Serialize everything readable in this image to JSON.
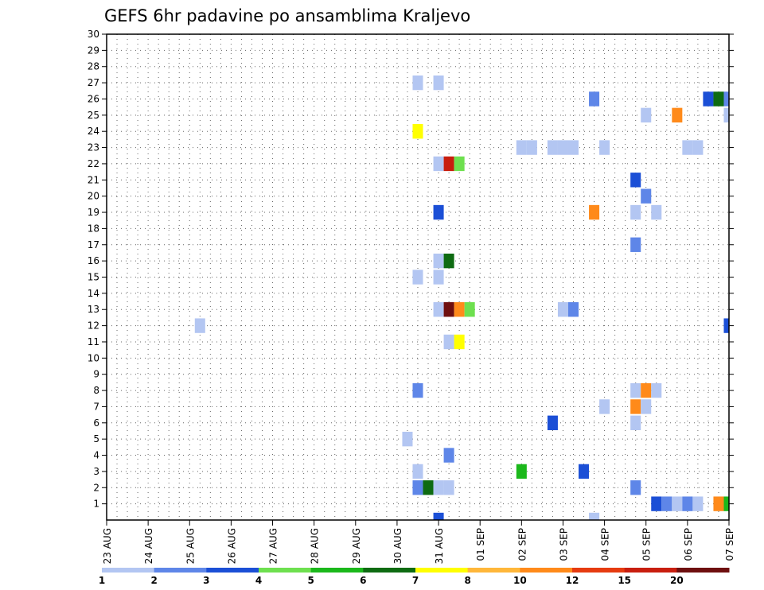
{
  "chart_data": {
    "type": "heatmap",
    "title": "GEFS 6hr padavine po ansamblima Kraljevo",
    "x_tick_labels": [
      "23 AUG",
      "24 AUG",
      "25 AUG",
      "26 AUG",
      "27 AUG",
      "28 AUG",
      "29 AUG",
      "30 AUG",
      "31 AUG",
      "01 SEP",
      "02 SEP",
      "03 SEP",
      "04 SEP",
      "05 SEP",
      "06 SEP",
      "07 SEP"
    ],
    "y_tick_labels": [
      "1",
      "2",
      "3",
      "4",
      "5",
      "6",
      "7",
      "8",
      "9",
      "10",
      "11",
      "12",
      "13",
      "14",
      "15",
      "16",
      "17",
      "18",
      "19",
      "20",
      "21",
      "22",
      "23",
      "24",
      "25",
      "26",
      "27",
      "28",
      "29",
      "30"
    ],
    "xlim": [
      "23 AUG 00z",
      "07 SEP 00z"
    ],
    "ylim": [
      0,
      30
    ],
    "grid": "dotted",
    "colorbar_labels": [
      "1",
      "2",
      "3",
      "4",
      "5",
      "6",
      "7",
      "8",
      "10",
      "12",
      "15",
      "20"
    ],
    "colorbar_colors": [
      "#b3c6f2",
      "#5e86e8",
      "#1b4fd6",
      "#6ee04f",
      "#1bb81b",
      "#0e6b12",
      "#ffff00",
      "#ffb73a",
      "#ff8a1a",
      "#e63b10",
      "#c81e0e",
      "#6e0f0f"
    ],
    "cells": [
      {
        "x": "30 AUG 12z",
        "member": 27,
        "value": 1
      },
      {
        "x": "31 AUG 00z",
        "member": 27,
        "value": 1
      },
      {
        "x": "30 AUG 12z",
        "member": 24,
        "value": 7
      },
      {
        "x": "31 AUG 00z",
        "member": 22,
        "value": 1
      },
      {
        "x": "31 AUG 06z",
        "member": 22,
        "value": 15
      },
      {
        "x": "31 AUG 12z",
        "member": 22,
        "value": 4
      },
      {
        "x": "31 AUG 00z",
        "member": 19,
        "value": 3
      },
      {
        "x": "31 AUG 00z",
        "member": 16,
        "value": 1
      },
      {
        "x": "31 AUG 06z",
        "member": 16,
        "value": 6
      },
      {
        "x": "30 AUG 12z",
        "member": 15,
        "value": 1
      },
      {
        "x": "31 AUG 00z",
        "member": 15,
        "value": 1
      },
      {
        "x": "31 AUG 00z",
        "member": 13,
        "value": 1
      },
      {
        "x": "31 AUG 06z",
        "member": 13,
        "value": 20
      },
      {
        "x": "31 AUG 12z",
        "member": 13,
        "value": 10
      },
      {
        "x": "31 AUG 18z",
        "member": 13,
        "value": 4
      },
      {
        "x": "25 AUG 06z",
        "member": 12,
        "value": 1
      },
      {
        "x": "31 AUG 06z",
        "member": 11,
        "value": 1
      },
      {
        "x": "31 AUG 12z",
        "member": 11,
        "value": 7
      },
      {
        "x": "30 AUG 12z",
        "member": 8,
        "value": 2
      },
      {
        "x": "30 AUG 06z",
        "member": 5,
        "value": 1
      },
      {
        "x": "31 AUG 06z",
        "member": 4,
        "value": 2
      },
      {
        "x": "30 AUG 12z",
        "member": 3,
        "value": 1
      },
      {
        "x": "30 AUG 12z",
        "member": 2,
        "value": 2
      },
      {
        "x": "30 AUG 18z",
        "member": 2,
        "value": 6
      },
      {
        "x": "31 AUG 00z",
        "member": 2,
        "value": 1
      },
      {
        "x": "31 AUG 06z",
        "member": 2,
        "value": 1
      },
      {
        "x": "31 AUG 00z",
        "member": 0,
        "value": 3
      },
      {
        "x": "02 SEP 00z",
        "member": 23,
        "value": 1
      },
      {
        "x": "02 SEP 06z",
        "member": 23,
        "value": 1
      },
      {
        "x": "02 SEP 18z",
        "member": 23,
        "value": 1
      },
      {
        "x": "03 SEP 00z",
        "member": 23,
        "value": 1
      },
      {
        "x": "03 SEP 06z",
        "member": 23,
        "value": 1
      },
      {
        "x": "04 SEP 00z",
        "member": 23,
        "value": 1
      },
      {
        "x": "06 SEP 00z",
        "member": 23,
        "value": 1
      },
      {
        "x": "06 SEP 06z",
        "member": 23,
        "value": 1
      },
      {
        "x": "04 SEP 18z",
        "member": 21,
        "value": 3
      },
      {
        "x": "05 SEP 00z",
        "member": 20,
        "value": 2
      },
      {
        "x": "03 SEP 18z",
        "member": 19,
        "value": 10
      },
      {
        "x": "04 SEP 18z",
        "member": 19,
        "value": 1
      },
      {
        "x": "05 SEP 06z",
        "member": 19,
        "value": 1
      },
      {
        "x": "04 SEP 18z",
        "member": 17,
        "value": 2
      },
      {
        "x": "03 SEP 00z",
        "member": 13,
        "value": 1
      },
      {
        "x": "03 SEP 06z",
        "member": 13,
        "value": 2
      },
      {
        "x": "03 SEP 18z",
        "member": 26,
        "value": 2
      },
      {
        "x": "05 SEP 00z",
        "member": 25,
        "value": 1
      },
      {
        "x": "05 SEP 18z",
        "member": 25,
        "value": 10
      },
      {
        "x": "06 SEP 12z",
        "member": 26,
        "value": 3
      },
      {
        "x": "06 SEP 18z",
        "member": 26,
        "value": 6
      },
      {
        "x": "07 SEP 00z",
        "member": 26,
        "value": 2
      },
      {
        "x": "07 SEP 00z",
        "member": 25,
        "value": 1
      },
      {
        "x": "07 SEP 00z",
        "member": 12,
        "value": 3
      },
      {
        "x": "04 SEP 18z",
        "member": 8,
        "value": 1
      },
      {
        "x": "05 SEP 00z",
        "member": 8,
        "value": 10
      },
      {
        "x": "05 SEP 06z",
        "member": 8,
        "value": 1
      },
      {
        "x": "04 SEP 00z",
        "member": 7,
        "value": 1
      },
      {
        "x": "04 SEP 18z",
        "member": 7,
        "value": 10
      },
      {
        "x": "05 SEP 00z",
        "member": 7,
        "value": 1
      },
      {
        "x": "02 SEP 18z",
        "member": 6,
        "value": 3
      },
      {
        "x": "04 SEP 18z",
        "member": 6,
        "value": 1
      },
      {
        "x": "02 SEP 00z",
        "member": 3,
        "value": 5
      },
      {
        "x": "03 SEP 12z",
        "member": 3,
        "value": 3
      },
      {
        "x": "04 SEP 18z",
        "member": 2,
        "value": 2
      },
      {
        "x": "05 SEP 06z",
        "member": 1,
        "value": 3
      },
      {
        "x": "05 SEP 12z",
        "member": 1,
        "value": 2
      },
      {
        "x": "05 SEP 18z",
        "member": 1,
        "value": 1
      },
      {
        "x": "06 SEP 00z",
        "member": 1,
        "value": 2
      },
      {
        "x": "06 SEP 06z",
        "member": 1,
        "value": 1
      },
      {
        "x": "06 SEP 18z",
        "member": 1,
        "value": 10
      },
      {
        "x": "07 SEP 00z",
        "member": 1,
        "value": 5
      },
      {
        "x": "03 SEP 18z",
        "member": 0,
        "value": 1
      }
    ]
  }
}
